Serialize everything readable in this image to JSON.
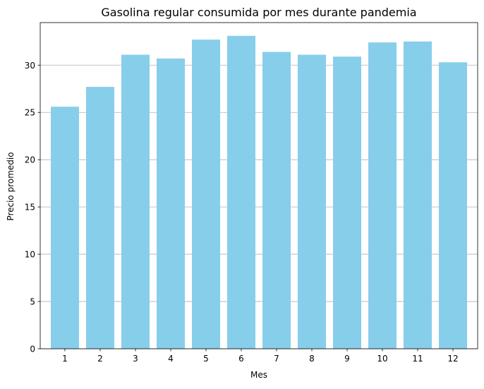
{
  "chart_data": {
    "type": "bar",
    "title": "Gasolina regular consumida por mes durante pandemia",
    "xlabel": "Mes",
    "ylabel": "Precio promedio",
    "categories": [
      "1",
      "2",
      "3",
      "4",
      "5",
      "6",
      "7",
      "8",
      "9",
      "10",
      "11",
      "12"
    ],
    "values": [
      25.6,
      27.7,
      31.1,
      30.7,
      32.7,
      33.1,
      31.4,
      31.1,
      30.9,
      32.4,
      32.5,
      30.3
    ],
    "ylim": [
      0,
      34.5
    ],
    "yticks": [
      0,
      5,
      10,
      15,
      20,
      25,
      30
    ],
    "grid": "horizontal",
    "legend": "none",
    "colors": {
      "bar": "#87CEEB",
      "grid": "#b0b0b0",
      "axis": "#000000"
    }
  }
}
